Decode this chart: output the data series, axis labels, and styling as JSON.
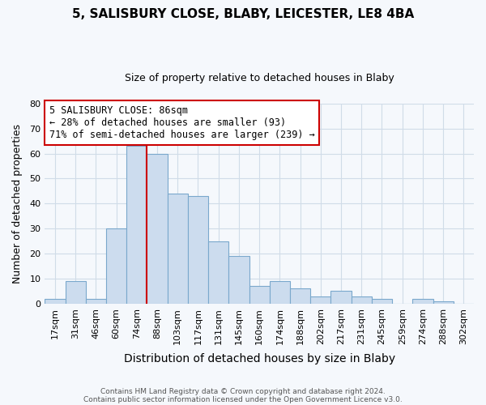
{
  "title": "5, SALISBURY CLOSE, BLABY, LEICESTER, LE8 4BA",
  "subtitle": "Size of property relative to detached houses in Blaby",
  "xlabel": "Distribution of detached houses by size in Blaby",
  "ylabel": "Number of detached properties",
  "bar_color": "#ccdcee",
  "bar_edge_color": "#7aa8cc",
  "categories": [
    "17sqm",
    "31sqm",
    "46sqm",
    "60sqm",
    "74sqm",
    "88sqm",
    "103sqm",
    "117sqm",
    "131sqm",
    "145sqm",
    "160sqm",
    "174sqm",
    "188sqm",
    "202sqm",
    "217sqm",
    "231sqm",
    "245sqm",
    "259sqm",
    "274sqm",
    "288sqm",
    "302sqm"
  ],
  "values": [
    2,
    9,
    2,
    30,
    63,
    60,
    44,
    43,
    25,
    19,
    7,
    9,
    6,
    3,
    5,
    3,
    2,
    0,
    2,
    1,
    0
  ],
  "vline_x_index": 5,
  "vline_color": "#cc0000",
  "annotation_title": "5 SALISBURY CLOSE: 86sqm",
  "annotation_line1": "← 28% of detached houses are smaller (93)",
  "annotation_line2": "71% of semi-detached houses are larger (239) →",
  "annotation_box_color": "#ffffff",
  "annotation_box_edge": "#cc0000",
  "ylim": [
    0,
    80
  ],
  "yticks": [
    0,
    10,
    20,
    30,
    40,
    50,
    60,
    70,
    80
  ],
  "footer1": "Contains HM Land Registry data © Crown copyright and database right 2024.",
  "footer2": "Contains public sector information licensed under the Open Government Licence v3.0.",
  "background_color": "#f5f8fc",
  "grid_color": "#d0dce8",
  "title_fontsize": 11,
  "subtitle_fontsize": 9,
  "xlabel_fontsize": 10,
  "ylabel_fontsize": 9,
  "tick_fontsize": 8,
  "footer_fontsize": 6.5
}
